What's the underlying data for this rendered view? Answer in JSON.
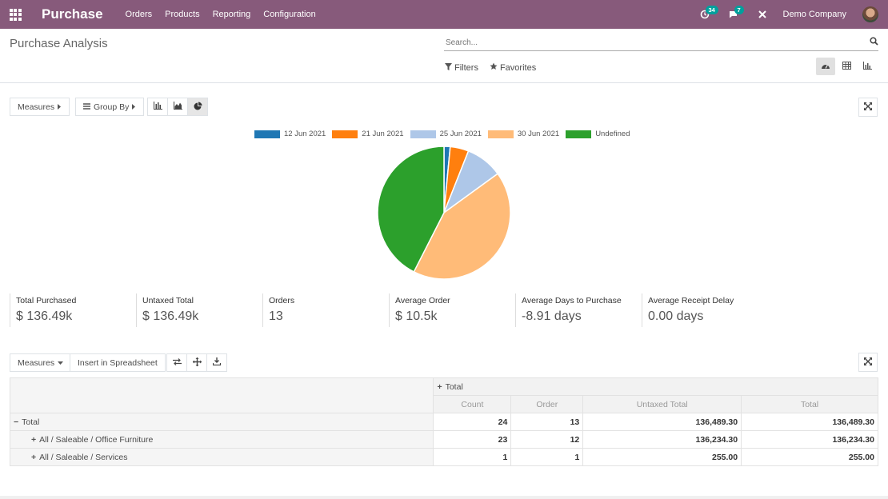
{
  "navbar": {
    "brand": "Purchase",
    "menu": [
      "Orders",
      "Products",
      "Reporting",
      "Configuration"
    ],
    "activity_count": "34",
    "message_count": "7",
    "company": "Demo Company"
  },
  "control_panel": {
    "title": "Purchase Analysis",
    "search_placeholder": "Search...",
    "filters_label": "Filters",
    "favorites_label": "Favorites"
  },
  "graph_toolbar": {
    "measures_label": "Measures",
    "group_by_label": "Group By"
  },
  "chart_data": {
    "type": "pie",
    "categories": [
      "12 Jun 2021",
      "21 Jun 2021",
      "25 Jun 2021",
      "30 Jun 2021",
      "Undefined"
    ],
    "values": [
      1.5,
      4.5,
      9.0,
      42.5,
      42.5
    ],
    "colors": [
      "#1f77b4",
      "#ff7f0e",
      "#aec7e8",
      "#ffbb78",
      "#2ca02c"
    ],
    "legend": "top"
  },
  "kpis": [
    {
      "label": "Total Purchased",
      "value": "$ 136.49k"
    },
    {
      "label": "Untaxed Total",
      "value": "$ 136.49k"
    },
    {
      "label": "Orders",
      "value": "13"
    },
    {
      "label": "Average Order",
      "value": "$ 10.5k"
    },
    {
      "label": "Average Days to Purchase",
      "value": "-8.91 days"
    },
    {
      "label": "Average Receipt Delay",
      "value": "0.00 days"
    }
  ],
  "pivot_toolbar": {
    "measures_label": "Measures",
    "insert_label": "Insert in Spreadsheet"
  },
  "pivot": {
    "col_header": "Total",
    "measures": [
      "Count",
      "Order",
      "Untaxed Total",
      "Total"
    ],
    "rows": [
      {
        "label": "Total",
        "values": [
          "24",
          "13",
          "136,489.30",
          "136,489.30"
        ]
      },
      {
        "label": "All / Saleable / Office Furniture",
        "values": [
          "23",
          "12",
          "136,234.30",
          "136,234.30"
        ]
      },
      {
        "label": "All / Saleable / Services",
        "values": [
          "1",
          "1",
          "255.00",
          "255.00"
        ]
      }
    ]
  }
}
